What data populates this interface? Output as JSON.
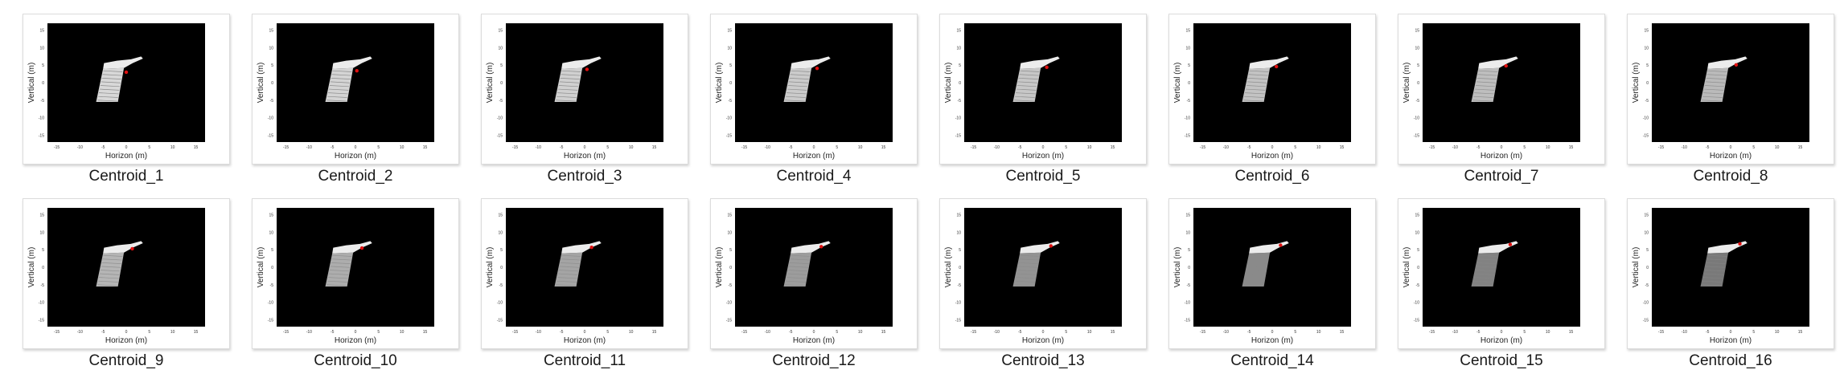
{
  "thumbnails": [
    {
      "caption": "Centroid_1",
      "centroid": [
        0.0,
        3.0
      ],
      "fade": 0.0
    },
    {
      "caption": "Centroid_2",
      "centroid": [
        0.3,
        3.4
      ],
      "fade": 0.02
    },
    {
      "caption": "Centroid_3",
      "centroid": [
        0.5,
        3.8
      ],
      "fade": 0.04
    },
    {
      "caption": "Centroid_4",
      "centroid": [
        0.7,
        4.1
      ],
      "fade": 0.06
    },
    {
      "caption": "Centroid_5",
      "centroid": [
        0.8,
        4.4
      ],
      "fade": 0.08
    },
    {
      "caption": "Centroid_6",
      "centroid": [
        0.9,
        4.6
      ],
      "fade": 0.1
    },
    {
      "caption": "Centroid_7",
      "centroid": [
        1.0,
        4.8
      ],
      "fade": 0.12
    },
    {
      "caption": "Centroid_8",
      "centroid": [
        1.2,
        5.1
      ],
      "fade": 0.14
    },
    {
      "caption": "Centroid_9",
      "centroid": [
        1.3,
        5.3
      ],
      "fade": 0.16
    },
    {
      "caption": "Centroid_10",
      "centroid": [
        1.4,
        5.5
      ],
      "fade": 0.2
    },
    {
      "caption": "Centroid_11",
      "centroid": [
        1.5,
        5.7
      ],
      "fade": 0.24
    },
    {
      "caption": "Centroid_12",
      "centroid": [
        1.6,
        5.9
      ],
      "fade": 0.28
    },
    {
      "caption": "Centroid_13",
      "centroid": [
        1.7,
        6.1
      ],
      "fade": 0.32
    },
    {
      "caption": "Centroid_14",
      "centroid": [
        1.8,
        6.3
      ],
      "fade": 0.36
    },
    {
      "caption": "Centroid_15",
      "centroid": [
        1.9,
        6.5
      ],
      "fade": 0.4
    },
    {
      "caption": "Centroid_16",
      "centroid": [
        2.0,
        6.7
      ],
      "fade": 0.44
    }
  ],
  "plot": {
    "xlabel": "Horizon (m)",
    "ylabel": "Vertical (m)",
    "xticks": [
      "-15",
      "-10",
      "-5",
      "0",
      "5",
      "10",
      "15"
    ],
    "yticks": [
      "-15",
      "-10",
      "-5",
      "0",
      "5",
      "10",
      "15"
    ],
    "xlim": [
      -17,
      17
    ],
    "ylim": [
      -17,
      17
    ],
    "background_color": "#000000",
    "object_color": "#d8d8d8",
    "marker_color": "#e01010"
  }
}
